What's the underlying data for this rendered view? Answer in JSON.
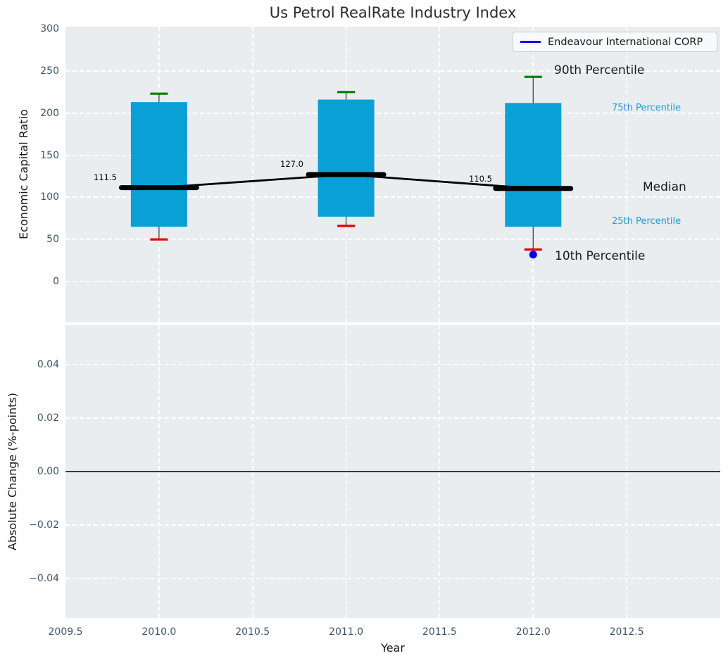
{
  "title": "Us Petrol RealRate Industry Index",
  "legend": {
    "label": "Endeavour International CORP",
    "position": "upper right"
  },
  "axes": {
    "top": {
      "ylabel": "Economic Capital Ratio",
      "yticks": [
        "300",
        "250",
        "200",
        "150",
        "100",
        "50",
        "0"
      ]
    },
    "bottom": {
      "ylabel": "Absolute Change (%-points)",
      "yticks": [
        "0.04",
        "0.02",
        "0.00",
        "−0.02",
        "−0.04"
      ]
    },
    "x": {
      "label": "Year",
      "ticks": [
        "2009.5",
        "2010.0",
        "2010.5",
        "2011.0",
        "2011.5",
        "2012.0",
        "2012.5"
      ]
    }
  },
  "annotations": {
    "p90": "90th Percentile",
    "p75": "75th Percentile",
    "median": "Median",
    "p25": "25th Percentile",
    "p10": "10th Percentile"
  },
  "colors": {
    "axes_background": "#e9edf0",
    "grid": "#ffffff",
    "box_fill": "#09a0d6",
    "p90_cap": "#008000",
    "p10_cap": "#e60000",
    "median_line": "#000000",
    "whisker": "#4d4d4d",
    "company_marker": "#0000ee",
    "percentile_text_cyan": "#1b9ed9",
    "tick_text": "#3d5468",
    "zero_line": "#000000"
  },
  "chart_data": {
    "type": "bar",
    "subtype": "percentile-box timeseries with change panel",
    "title": "Us Petrol RealRate Industry Index",
    "xlabel": "Year",
    "xlim": [
      2009.5,
      2013.0
    ],
    "xticks": [
      2009.5,
      2010.0,
      2010.5,
      2011.0,
      2011.5,
      2012.0,
      2012.5
    ],
    "grid": "white dashed on light gray background",
    "legend_entries": [
      "Endeavour International CORP"
    ],
    "panels": [
      {
        "ylabel": "Economic Capital Ratio",
        "ylim": [
          -48,
          302
        ],
        "ytick_values": [
          300,
          250,
          200,
          150,
          100,
          50,
          0
        ],
        "boxes": [
          {
            "year": 2010,
            "p90": 223,
            "p75": 213,
            "median": 111.5,
            "p25": 65,
            "p10": 50,
            "median_label": "111.5"
          },
          {
            "year": 2011,
            "p90": 225,
            "p75": 216,
            "median": 127.0,
            "p25": 77,
            "p10": 66,
            "median_label": "127.0"
          },
          {
            "year": 2012,
            "p90": 243,
            "p75": 212,
            "median": 110.5,
            "p25": 65,
            "p10": 38,
            "median_label": "110.5"
          }
        ],
        "median_trend": {
          "x": [
            2010,
            2011,
            2012
          ],
          "values": [
            111.5,
            127.0,
            110.5
          ]
        },
        "company_series": {
          "name": "Endeavour International CORP",
          "points": [
            {
              "year": 2012,
              "value": 32
            }
          ]
        }
      },
      {
        "ylabel": "Absolute Change (%-points)",
        "ylim": [
          -0.055,
          0.055
        ],
        "ytick_values": [
          0.04,
          0.02,
          0.0,
          -0.02,
          -0.04
        ],
        "zero_line": 0.0,
        "series": []
      }
    ]
  }
}
